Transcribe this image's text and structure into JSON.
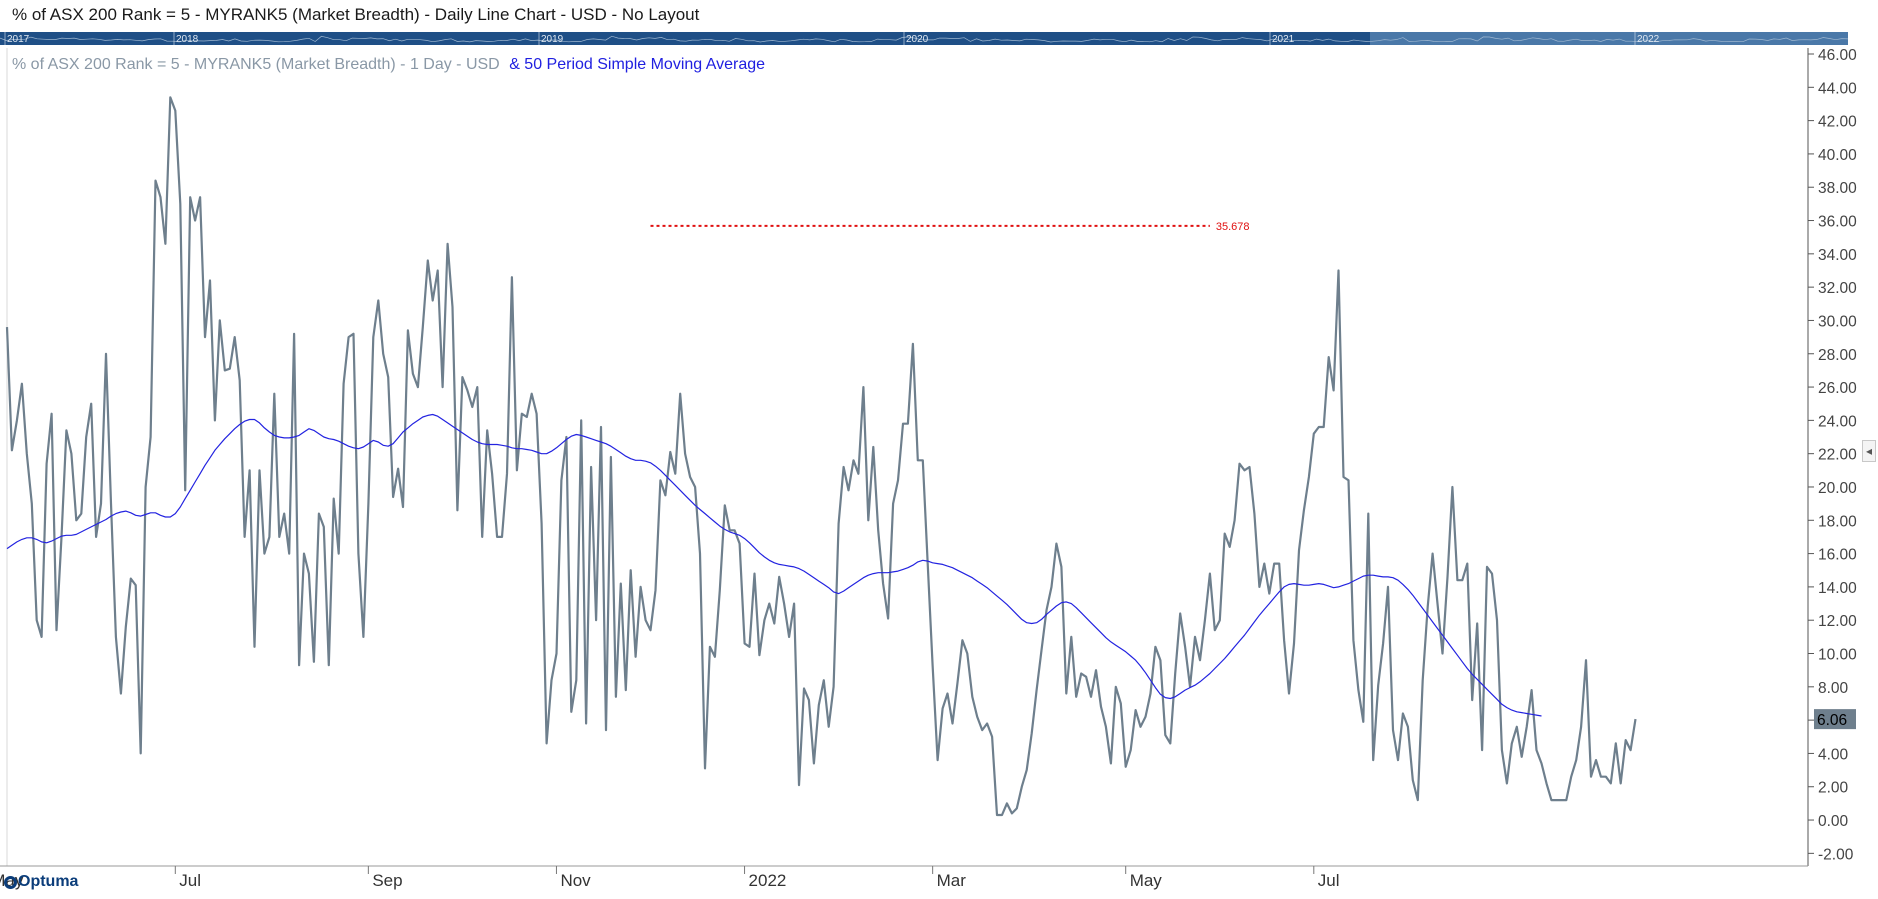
{
  "window": {
    "title": "% of ASX 200 Rank = 5 - MYRANK5 (Market Breadth) - Daily Line Chart - USD - No Layout"
  },
  "navigator": {
    "years": [
      "2017",
      "2018",
      "2019",
      "2020",
      "2021",
      "2022"
    ]
  },
  "legend": {
    "series_text": "% of ASX 200 Rank = 5 - MYRANK5 (Market Breadth) - 1 Day - USD",
    "ma_text": "& 50 Period Simple Moving Average"
  },
  "colors": {
    "price_line": "#6e7f8d",
    "ma_line": "#2323e0",
    "resistance_line": "#e01010",
    "nav_bar": "#1f4f86",
    "last_value_badge": "#6e7f8d"
  },
  "logo": {
    "text": "Optuma"
  },
  "icons": {
    "collapse": "chevron-left-icon"
  },
  "chart_data": {
    "type": "line",
    "title": "% of ASX 200 Rank = 5 - MYRANK5 (Market Breadth) - 1 Day - USD",
    "ylim": [
      -3.0,
      46.0
    ],
    "y_ticks": [
      "46.00",
      "44.00",
      "42.00",
      "40.00",
      "38.00",
      "36.00",
      "34.00",
      "32.00",
      "30.00",
      "28.00",
      "26.00",
      "24.00",
      "22.00",
      "20.00",
      "18.00",
      "16.00",
      "14.00",
      "12.00",
      "10.00",
      "8.00",
      "6.00",
      "4.00",
      "2.00",
      "0.00",
      "-2.00"
    ],
    "x_ticks": [
      "May",
      "Jul",
      "Sep",
      "Nov",
      "2022",
      "Mar",
      "May",
      "Jul"
    ],
    "x_tick_index": [
      -4,
      34,
      73,
      111,
      149,
      187,
      226,
      264
    ],
    "grid": false,
    "last_value": "6.06",
    "resistance": {
      "value": 35.678,
      "label": "35.678",
      "start_index": 130,
      "end_index": 243
    },
    "series": [
      {
        "name": "% of ASX 200 Rank = 5 - MYRANK5 (Market Breadth) - 1 Day - USD",
        "values": [
          29.6,
          22.2,
          24,
          26.2,
          22,
          19,
          12,
          11,
          21.4,
          24.4,
          11.4,
          17,
          23.4,
          22,
          18,
          18.4,
          23,
          25,
          17,
          19,
          28,
          19,
          11,
          7.6,
          11.6,
          14.5,
          14.1,
          4,
          20,
          23,
          38.4,
          37.4,
          34.6,
          43.4,
          42.6,
          37,
          19.8,
          37.4,
          36,
          37.4,
          29,
          32.4,
          24,
          30,
          27,
          27.1,
          29,
          26.4,
          17,
          21,
          10.4,
          21,
          16,
          17,
          25.6,
          17,
          18.4,
          16,
          29.2,
          9.3,
          16,
          14.8,
          9.5,
          18.4,
          17.6,
          9.3,
          19.3,
          16,
          26.2,
          29,
          29.2,
          16,
          11,
          19,
          29,
          31.2,
          28,
          26.6,
          19.4,
          21.1,
          18.8,
          29.4,
          26.8,
          26,
          29.6,
          33.6,
          31.2,
          33,
          26,
          34.6,
          30.8,
          18.6,
          26.6,
          25.8,
          24.8,
          26,
          17,
          23.4,
          20.8,
          17,
          17,
          20.8,
          32.6,
          21,
          24.4,
          24.2,
          25.6,
          24.4,
          17.8,
          4.6,
          8.4,
          10,
          20.4,
          23,
          6.5,
          8.4,
          24,
          5.8,
          21.2,
          12,
          23.6,
          5.4,
          21.8,
          7.4,
          14.2,
          7.8,
          15,
          9.8,
          14,
          12,
          11.4,
          13.8,
          20.4,
          19.5,
          22.1,
          20.8,
          25.6,
          22,
          20.6,
          20,
          16,
          3.1,
          10.4,
          9.8,
          13.8,
          18.9,
          17.4,
          17.4,
          16.6,
          10.6,
          10.4,
          14.8,
          9.9,
          12,
          13,
          11.8,
          14.6,
          13,
          11,
          13,
          2.1,
          7.9,
          7.2,
          3.4,
          6.9,
          8.4,
          5.6,
          8,
          17.8,
          21.2,
          19.8,
          21.6,
          20.8,
          26,
          18,
          22.4,
          17.4,
          14.2,
          12.1,
          19,
          20.4,
          23.8,
          23.8,
          28.6,
          21.6,
          21.6,
          15.4,
          9.3,
          3.6,
          6.7,
          7.6,
          5.8,
          8.2,
          10.8,
          10,
          7.4,
          6.2,
          5.4,
          5.8,
          5,
          0.3,
          0.3,
          1,
          0.4,
          0.7,
          2,
          3,
          5.2,
          7.8,
          10.2,
          12.6,
          14,
          16.6,
          15.2,
          7.6,
          11,
          7.4,
          8.8,
          8.6,
          7.4,
          9,
          6.8,
          5.6,
          3.4,
          8,
          7,
          3.2,
          4.2,
          6.6,
          5.6,
          6.2,
          7.6,
          10.4,
          9.6,
          5.1,
          4.6,
          8.8,
          12.4,
          10.4,
          8,
          11,
          9.6,
          12,
          14.8,
          11.4,
          12,
          17.2,
          16.4,
          18,
          21.4,
          21,
          21.2,
          18.4,
          14,
          15.4,
          13.6,
          15.4,
          15.4,
          10.8,
          7.6,
          10.6,
          16.2,
          18.6,
          20.6,
          23.2,
          23.6,
          23.6,
          27.8,
          25.8,
          33,
          20.6,
          20.4,
          10.8,
          7.8,
          5.9,
          18.4,
          3.6,
          8.1,
          10.6,
          14,
          5.4,
          3.6,
          6.4,
          5.6,
          2.4,
          1.2,
          8.4,
          12.8,
          16,
          13,
          10,
          14.6,
          20,
          14.4,
          14.4,
          15.4,
          7.2,
          11.8,
          4.2,
          15.2,
          14.8,
          12,
          4.2,
          2.2,
          4.6,
          5.6,
          3.8,
          5.6,
          7.8,
          4.2,
          3.4,
          2.2,
          1.2,
          1.2,
          1.2,
          1.2,
          2.6,
          3.6,
          5.6,
          9.6,
          2.6,
          3.6,
          2.6,
          2.6,
          2.2,
          4.6,
          2.2,
          4.8,
          4.2,
          6.06
        ]
      },
      {
        "name": "50 Period Simple Moving Average",
        "values": [
          16.3,
          16.5,
          16.7,
          16.85,
          16.95,
          16.95,
          16.85,
          16.7,
          16.65,
          16.75,
          16.9,
          17.05,
          17.1,
          17.1,
          17.15,
          17.3,
          17.45,
          17.6,
          17.75,
          17.9,
          18.05,
          18.25,
          18.4,
          18.5,
          18.55,
          18.45,
          18.3,
          18.25,
          18.35,
          18.45,
          18.45,
          18.3,
          18.2,
          18.2,
          18.4,
          18.8,
          19.3,
          19.8,
          20.3,
          20.8,
          21.3,
          21.75,
          22.2,
          22.55,
          22.9,
          23.2,
          23.5,
          23.75,
          23.95,
          24.05,
          24.05,
          23.85,
          23.55,
          23.3,
          23.1,
          23,
          22.95,
          22.95,
          23,
          23.1,
          23.3,
          23.5,
          23.4,
          23.2,
          23,
          22.9,
          22.85,
          22.75,
          22.6,
          22.45,
          22.35,
          22.3,
          22.4,
          22.6,
          22.8,
          22.7,
          22.5,
          22.45,
          22.6,
          22.95,
          23.3,
          23.55,
          23.8,
          24,
          24.2,
          24.3,
          24.35,
          24.25,
          24.05,
          23.85,
          23.65,
          23.45,
          23.25,
          23.05,
          22.85,
          22.7,
          22.6,
          22.55,
          22.55,
          22.55,
          22.5,
          22.45,
          22.35,
          22.3,
          22.3,
          22.25,
          22.2,
          22.1,
          22,
          22,
          22.15,
          22.35,
          22.6,
          22.85,
          23.05,
          23.15,
          23.1,
          23,
          22.9,
          22.8,
          22.7,
          22.6,
          22.45,
          22.25,
          22.05,
          21.85,
          21.7,
          21.6,
          21.6,
          21.55,
          21.45,
          21.25,
          21,
          20.7,
          20.4,
          20.1,
          19.8,
          19.5,
          19.2,
          18.9,
          18.65,
          18.4,
          18.15,
          17.9,
          17.65,
          17.45,
          17.3,
          17.2,
          17.1,
          16.9,
          16.65,
          16.35,
          16.05,
          15.8,
          15.6,
          15.45,
          15.35,
          15.3,
          15.25,
          15.2,
          15.1,
          14.95,
          14.75,
          14.55,
          14.35,
          14.15,
          13.95,
          13.7,
          13.6,
          13.75,
          13.95,
          14.15,
          14.35,
          14.55,
          14.7,
          14.8,
          14.85,
          14.85,
          14.85,
          14.9,
          14.95,
          15.05,
          15.15,
          15.3,
          15.5,
          15.6,
          15.55,
          15.45,
          15.4,
          15.35,
          15.25,
          15.15,
          15,
          14.85,
          14.7,
          14.55,
          14.35,
          14.15,
          13.95,
          13.7,
          13.45,
          13.2,
          12.95,
          12.65,
          12.35,
          12.05,
          11.85,
          11.8,
          11.85,
          12.05,
          12.35,
          12.6,
          12.85,
          13.05,
          13.1,
          13,
          12.75,
          12.45,
          12.15,
          11.85,
          11.55,
          11.25,
          10.95,
          10.7,
          10.5,
          10.3,
          10.1,
          9.85,
          9.6,
          9.25,
          8.85,
          8.4,
          7.95,
          7.55,
          7.35,
          7.3,
          7.4,
          7.6,
          7.8,
          7.95,
          8.1,
          8.3,
          8.55,
          8.8,
          9.1,
          9.4,
          9.7,
          10.05,
          10.4,
          10.75,
          11.1,
          11.5,
          11.9,
          12.3,
          12.65,
          13,
          13.35,
          13.7,
          14,
          14.15,
          14.2,
          14.15,
          14.1,
          14.1,
          14.15,
          14.2,
          14.15,
          14.05,
          13.95,
          14,
          14.1,
          14.2,
          14.35,
          14.5,
          14.65,
          14.7,
          14.7,
          14.65,
          14.6,
          14.6,
          14.55,
          14.4,
          14.15,
          13.85,
          13.5,
          13.1,
          12.7,
          12.3,
          11.9,
          11.5,
          11.1,
          10.7,
          10.3,
          9.9,
          9.5,
          9.1,
          8.75,
          8.45,
          8.15,
          7.85,
          7.55,
          7.25,
          6.95,
          6.75,
          6.6,
          6.5,
          6.45,
          6.4,
          6.35,
          6.3,
          6.25
        ]
      }
    ]
  }
}
